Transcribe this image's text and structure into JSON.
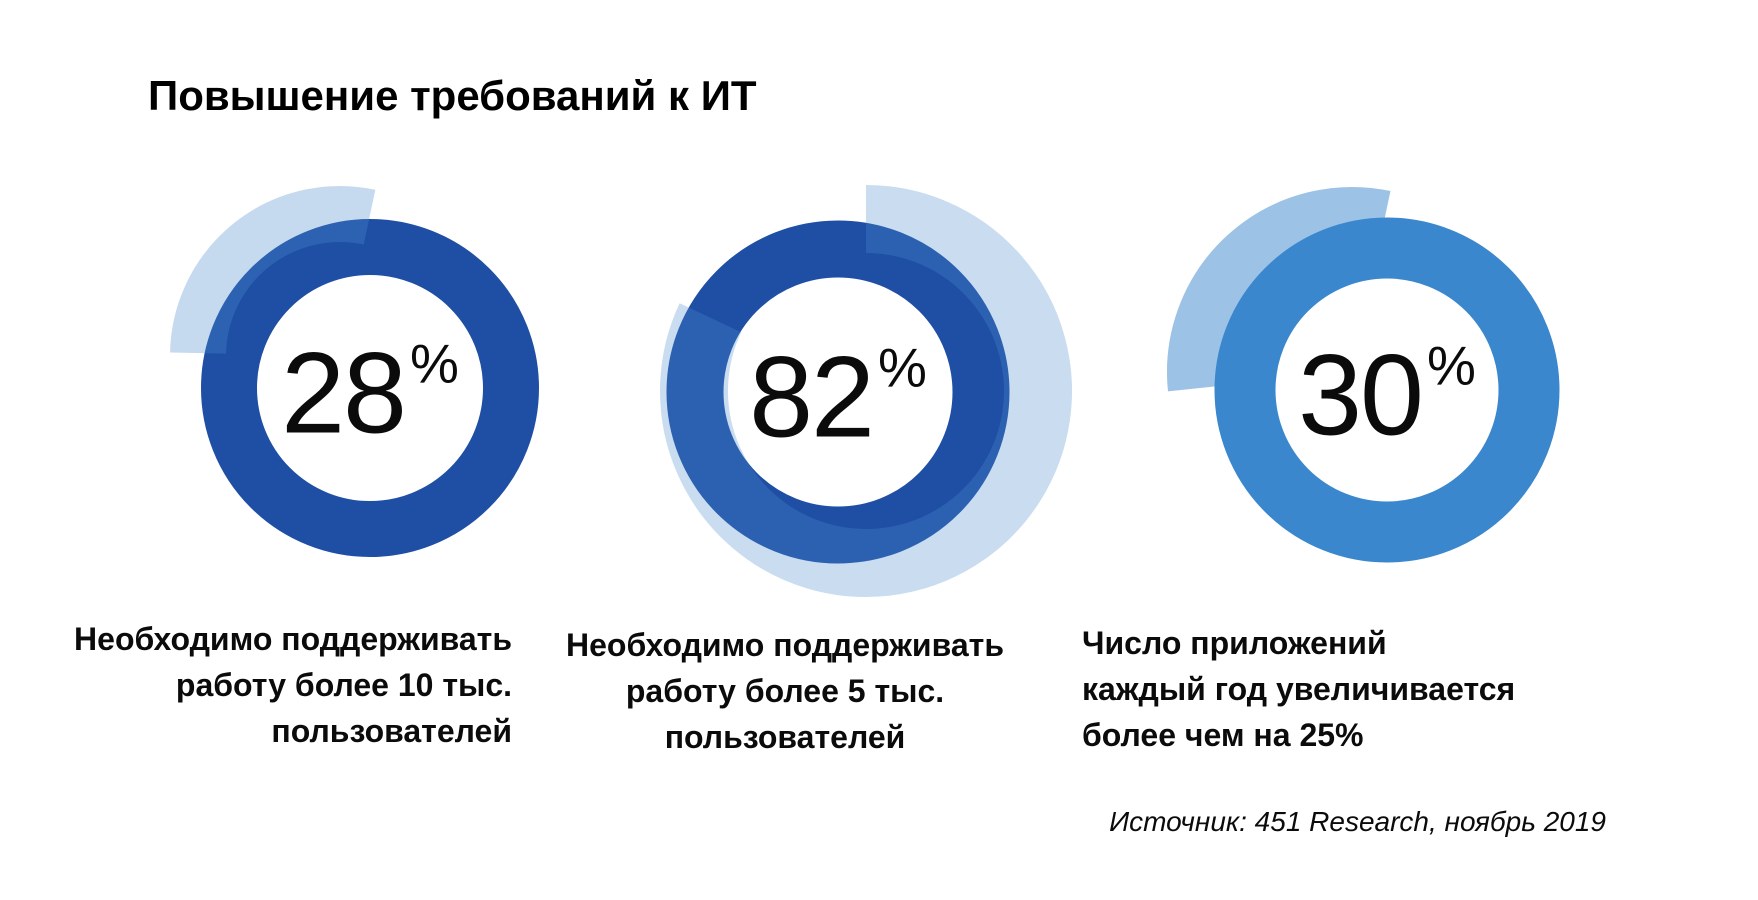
{
  "header": {
    "title": "Повышение требований к ИТ"
  },
  "footer": {
    "source": "Источник: 451 Research, ноябрь 2019"
  },
  "chart_data": {
    "type": "pie",
    "subtype": "donut-progress-infographic",
    "title": "Повышение требований к ИТ",
    "source": "Источник: 451 Research, ноябрь 2019",
    "legend_position": "none",
    "grid": false,
    "charts": [
      {
        "value": 28,
        "unit": "%",
        "label": "Необходимо поддерживать работу более 10 тыс. пользователей"
      },
      {
        "value": 82,
        "unit": "%",
        "label": "Необходимо поддерживать работу более 5 тыс. пользователей"
      },
      {
        "value": 30,
        "unit": "%",
        "label": "Число приложений каждый год увеличивается более чем на 25%"
      }
    ]
  },
  "donuts": [
    {
      "value": 28,
      "unit": "%",
      "caption_lines": [
        "Необходимо поддерживать",
        "работу более 10 тыс.",
        "пользователей"
      ],
      "caption_align": "right",
      "colors": {
        "ring": "#1F4FA5",
        "arc": "rgba(76,139,206,0.32)"
      },
      "geometry": {
        "ring_r": 141,
        "ring_w": 56,
        "arc_dx": -30,
        "arc_dy": -32,
        "arc_r": 142,
        "arc_w": 56,
        "arc_start_deg": -78,
        "arc_dir": "ccw",
        "arc_over_ring": true
      }
    },
    {
      "value": 82,
      "unit": "%",
      "caption_lines": [
        "Необходимо поддерживать",
        "работу более 5 тыс.",
        "пользователей"
      ],
      "caption_align": "center",
      "colors": {
        "ring": "#1F4FA5",
        "arc": "rgba(76,139,206,0.30)"
      },
      "geometry": {
        "ring_r": 143,
        "ring_w": 57,
        "arc_dx": 28,
        "arc_dy": -1,
        "arc_r": 172,
        "arc_w": 68,
        "arc_start_deg": -90,
        "arc_dir": "cw",
        "arc_over_ring": true
      }
    },
    {
      "value": 30,
      "unit": "%",
      "caption_lines": [
        "Число приложений",
        "каждый год увеличивается",
        "более чем на 25%"
      ],
      "caption_align": "left",
      "colors": {
        "ring": "#3A87CE",
        "arc": "#9CC2E5"
      },
      "geometry": {
        "ring_r": 142,
        "ring_w": 61,
        "arc_dx": -35,
        "arc_dy": -18,
        "arc_r": 157,
        "arc_w": 56,
        "arc_start_deg": -78,
        "arc_dir": "ccw",
        "arc_over_ring": false
      }
    }
  ]
}
